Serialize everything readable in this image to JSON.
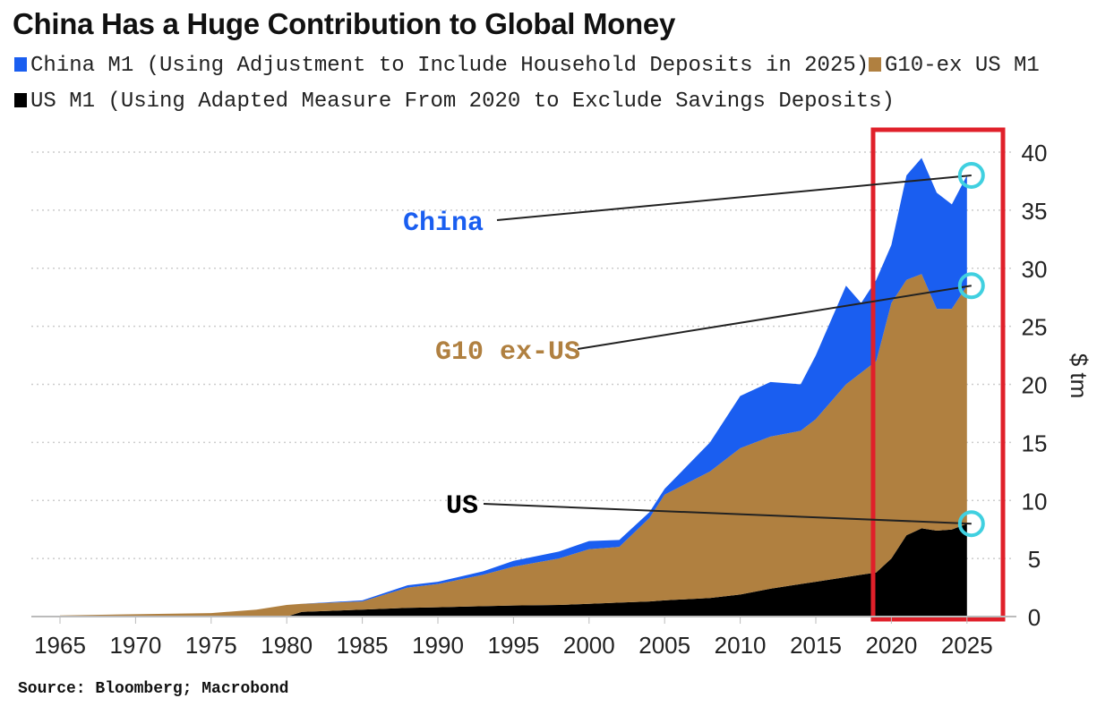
{
  "chart_data": {
    "type": "area",
    "stacked": true,
    "title": "China Has a Huge Contribution to Global Money",
    "ylabel": "$ tm",
    "xlabel": "",
    "ylim": [
      0,
      40
    ],
    "xlim": [
      1963,
      2029
    ],
    "y_axis_position": "right",
    "grid": "horizontal dotted",
    "legend_position": "top",
    "yticks": [
      "0",
      "5",
      "10",
      "15",
      "20",
      "25",
      "30",
      "35",
      "40"
    ],
    "xticks": [
      "1965",
      "1970",
      "1975",
      "1980",
      "1985",
      "1990",
      "1995",
      "2000",
      "2005",
      "2010",
      "2015",
      "2020",
      "2025"
    ],
    "x": [
      1965,
      1970,
      1975,
      1978,
      1980,
      1981,
      1985,
      1988,
      1990,
      1993,
      1995,
      1998,
      2000,
      2002,
      2004,
      2005,
      2008,
      2010,
      2012,
      2014,
      2015,
      2017,
      2018,
      2019,
      2020,
      2021,
      2022,
      2023,
      2024,
      2025
    ],
    "series": [
      {
        "name": "US M1 (Using Adapted Measure From 2020 to Exclude Savings Deposits)",
        "color": "#000000",
        "values": [
          0,
          0,
          0,
          0,
          0,
          0.4,
          0.6,
          0.75,
          0.8,
          0.9,
          0.95,
          1.0,
          1.1,
          1.2,
          1.3,
          1.4,
          1.6,
          1.9,
          2.4,
          2.8,
          3.0,
          3.4,
          3.6,
          3.8,
          5.0,
          7.0,
          7.6,
          7.4,
          7.5,
          8.0
        ]
      },
      {
        "name": "G10-ex US M1",
        "color": "#B08040",
        "values": [
          0.1,
          0.2,
          0.3,
          0.6,
          1.0,
          0.7,
          0.7,
          1.75,
          2.0,
          2.7,
          3.35,
          4.0,
          4.7,
          4.8,
          7.2,
          9.1,
          10.9,
          12.6,
          13.1,
          13.2,
          14.0,
          16.6,
          17.4,
          18.2,
          22.0,
          22.0,
          21.9,
          19.1,
          19.0,
          20.5
        ]
      },
      {
        "name": "China M1 (Using Adjustment to Include Household Deposits in 2025)",
        "color": "#1A5EF0",
        "values": [
          0,
          0,
          0,
          0,
          0,
          0,
          0.1,
          0.2,
          0.2,
          0.3,
          0.5,
          0.6,
          0.7,
          0.6,
          0.5,
          0.5,
          2.5,
          4.5,
          4.7,
          4.0,
          5.5,
          8.5,
          6.0,
          7.0,
          5.0,
          9.0,
          10.0,
          10.0,
          9.0,
          9.5
        ]
      }
    ],
    "annotations": [
      {
        "text": "China",
        "color": "#1A5EF0",
        "points_to": {
          "x": 2025,
          "y": 38
        }
      },
      {
        "text": "G10 ex-US",
        "color": "#B08040",
        "points_to": {
          "x": 2025,
          "y": 28.5
        }
      },
      {
        "text": "US",
        "color": "#000000",
        "points_to": {
          "x": 2025,
          "y": 8
        }
      }
    ],
    "highlight_box": {
      "from_year": 2019,
      "to_year": 2027,
      "color": "#E0202A"
    },
    "marker_color": "#40D0E0",
    "source": "Source: Bloomberg; Macrobond"
  }
}
